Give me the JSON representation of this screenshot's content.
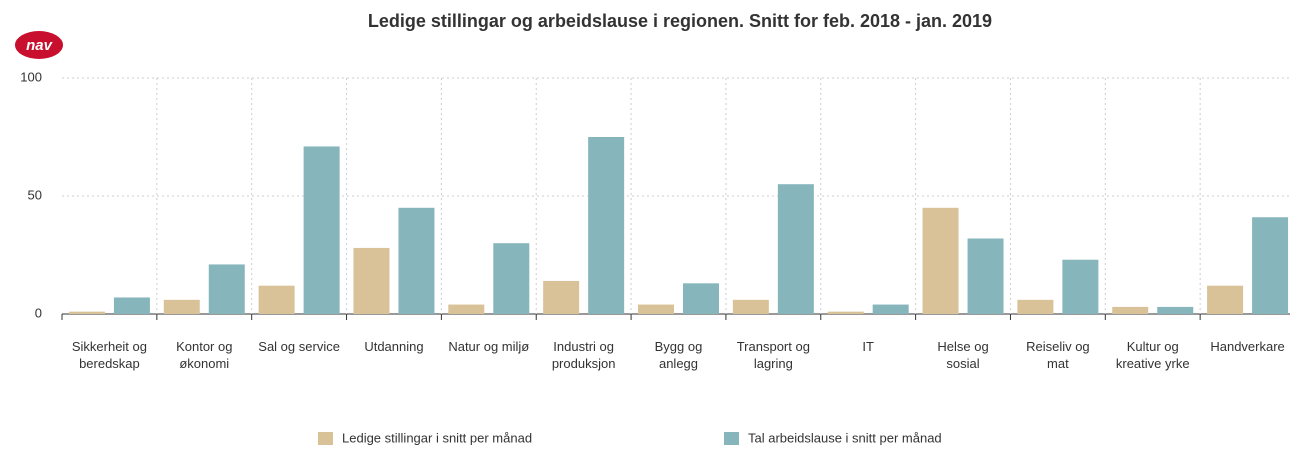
{
  "logo": "nav",
  "chart_data": {
    "type": "bar",
    "title": "Ledige stillingar og arbeidslause i regionen. Snitt for feb. 2018 - jan. 2019",
    "categories": [
      "Sikkerheit og beredskap",
      "Kontor og økonomi",
      "Sal og service",
      "Utdanning",
      "Natur og miljø",
      "Industri og produksjon",
      "Bygg og anlegg",
      "Transport og lagring",
      "IT",
      "Helse og sosial",
      "Reiseliv og mat",
      "Kultur og kreative yrke",
      "Handverkare"
    ],
    "series": [
      {
        "name": "Ledige stillingar i snitt per månad",
        "color": "#d9c298",
        "values": [
          1,
          6,
          12,
          28,
          4,
          14,
          4,
          6,
          1,
          45,
          6,
          3,
          12
        ]
      },
      {
        "name": "Tal arbeidslause i snitt per månad",
        "color": "#86b6bc",
        "values": [
          7,
          21,
          71,
          45,
          30,
          75,
          13,
          55,
          4,
          32,
          23,
          3,
          41
        ]
      }
    ],
    "ylim": [
      0,
      100
    ],
    "yticks": [
      0,
      50,
      100
    ],
    "grid": true,
    "legend": "bottom"
  }
}
